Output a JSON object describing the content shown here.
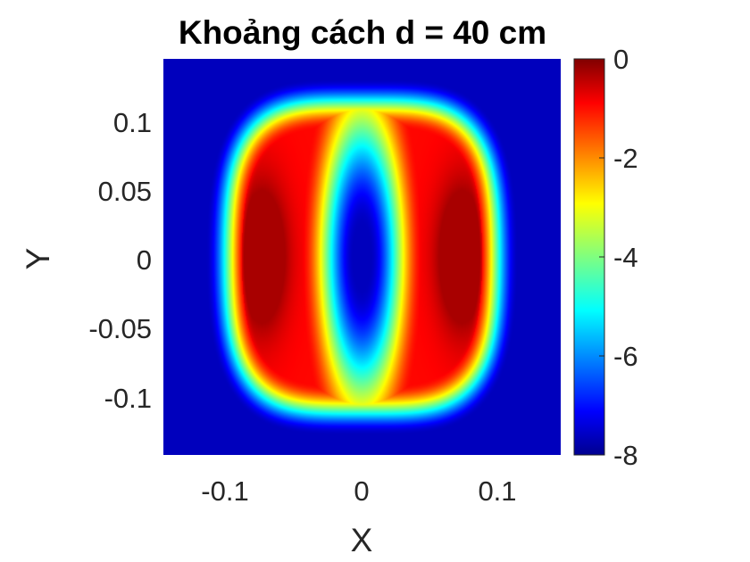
{
  "chart_data": {
    "type": "heatmap",
    "title": "Khoảng cách d = 40 cm",
    "xlabel": "X",
    "ylabel": "Y",
    "xlim": [
      -0.145,
      0.145
    ],
    "ylim": [
      -0.14,
      0.14
    ],
    "x_ticks": [
      -0.1,
      0,
      0.1
    ],
    "x_tick_labels": [
      "-0.1",
      "0",
      "0.1"
    ],
    "y_ticks": [
      0.1,
      0.05,
      0,
      -0.05,
      -0.1
    ],
    "y_tick_labels": [
      "0.1",
      "0.05",
      "0",
      "-0.05",
      "-0.1"
    ],
    "colormap": "jet",
    "colorbar": {
      "limits": [
        -8,
        0
      ],
      "ticks": [
        0,
        -2,
        -4,
        -6,
        -8
      ],
      "tick_labels": [
        "0",
        "-2",
        "-4",
        "-6",
        "-8"
      ]
    },
    "field": {
      "description_units": "dB",
      "outer_half_x": 0.114,
      "outer_half_y": 0.126,
      "ring_half_x": 0.07,
      "ring_half_y": 0.088,
      "inner_half_x": 0.017,
      "inner_half_y": 0.06,
      "background_value": -8,
      "peak_value": 0,
      "center_value": -8
    }
  }
}
